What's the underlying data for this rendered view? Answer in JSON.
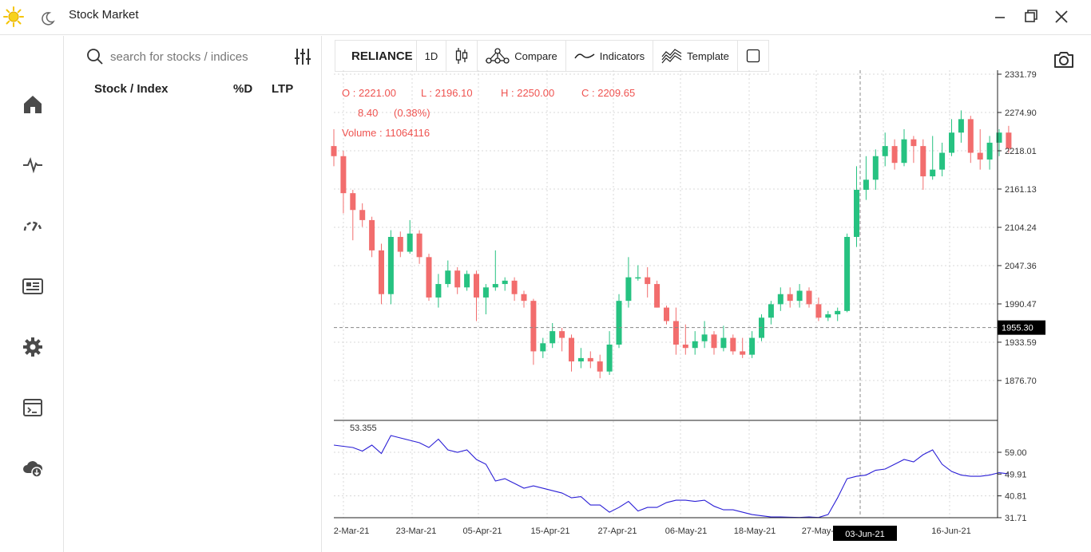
{
  "app": {
    "title": "Stock Market"
  },
  "search": {
    "placeholder": "search for stocks / indices"
  },
  "list": {
    "col_name": "Stock / Index",
    "col_change": "%D",
    "col_ltp": "LTP"
  },
  "toolbar": {
    "symbol": "RELIANCE",
    "interval": "1D",
    "compare": "Compare",
    "indicators": "Indicators",
    "template": "Template"
  },
  "ohlc": {
    "open": "O : 2221.00",
    "low": "L : 2196.10",
    "high": "H : 2250.00",
    "close": "C : 2209.65",
    "change": "8.40",
    "change_pct": "(0.38%)",
    "volume": "Volume :  11064116"
  },
  "crosshair": {
    "price": "1955.30",
    "date": "03-Jun-21"
  },
  "colors": {
    "up": "#26c281",
    "down": "#f26d6d",
    "indicator": "#2b1fd6",
    "text_accent": "#ef5350"
  },
  "chart_data": {
    "type": "candlestick",
    "price_axis": {
      "ticks": [
        "2331.79",
        "2274.90",
        "2218.01",
        "2161.13",
        "2104.24",
        "2047.36",
        "1990.47",
        "1933.59",
        "1876.70"
      ],
      "range": [
        1790,
        2331.79
      ]
    },
    "x_axis": {
      "ticks": [
        "2-Mar-21",
        "23-Mar-21",
        "05-Apr-21",
        "15-Apr-21",
        "27-Apr-21",
        "06-May-21",
        "18-May-21",
        "27-May-21",
        "",
        "16-Jun-21"
      ]
    },
    "candles": [
      [
        2225,
        2250,
        2195,
        2210
      ],
      [
        2210,
        2218,
        2125,
        2155
      ],
      [
        2155,
        2160,
        2085,
        2130
      ],
      [
        2130,
        2140,
        2105,
        2115
      ],
      [
        2115,
        2120,
        2060,
        2070
      ],
      [
        2070,
        2080,
        1990,
        2005
      ],
      [
        2005,
        2100,
        1990,
        2090
      ],
      [
        2090,
        2098,
        2060,
        2068
      ],
      [
        2068,
        2115,
        2065,
        2095
      ],
      [
        2095,
        2100,
        2050,
        2060
      ],
      [
        2060,
        2065,
        1995,
        2000
      ],
      [
        2000,
        2035,
        1985,
        2020
      ],
      [
        2020,
        2055,
        2015,
        2040
      ],
      [
        2040,
        2045,
        2005,
        2015
      ],
      [
        2015,
        2040,
        2010,
        2035
      ],
      [
        2035,
        2040,
        1965,
        2000
      ],
      [
        2000,
        2020,
        1975,
        2015
      ],
      [
        2015,
        2070,
        2010,
        2020
      ],
      [
        2020,
        2030,
        2010,
        2025
      ],
      [
        2025,
        2030,
        1995,
        2005
      ],
      [
        2005,
        2010,
        1985,
        1995
      ],
      [
        1995,
        1998,
        1900,
        1920
      ],
      [
        1920,
        1940,
        1910,
        1932
      ],
      [
        1932,
        1962,
        1925,
        1950
      ],
      [
        1950,
        1955,
        1920,
        1940
      ],
      [
        1940,
        1945,
        1890,
        1905
      ],
      [
        1905,
        1925,
        1895,
        1910
      ],
      [
        1910,
        1920,
        1895,
        1905
      ],
      [
        1905,
        1915,
        1880,
        1890
      ],
      [
        1890,
        1950,
        1885,
        1930
      ],
      [
        1930,
        2005,
        1925,
        1995
      ],
      [
        1995,
        2060,
        1985,
        2030
      ],
      [
        2030,
        2048,
        2025,
        2030
      ],
      [
        2030,
        2045,
        2000,
        2020
      ],
      [
        2020,
        2025,
        1985,
        1985
      ],
      [
        1985,
        1988,
        1960,
        1965
      ],
      [
        1965,
        1985,
        1915,
        1930
      ],
      [
        1930,
        1960,
        1915,
        1925
      ],
      [
        1925,
        1950,
        1915,
        1935
      ],
      [
        1935,
        1965,
        1925,
        1945
      ],
      [
        1945,
        1950,
        1915,
        1925
      ],
      [
        1925,
        1958,
        1920,
        1940
      ],
      [
        1940,
        1945,
        1915,
        1920
      ],
      [
        1920,
        1940,
        1910,
        1915
      ],
      [
        1915,
        1950,
        1910,
        1940
      ],
      [
        1940,
        1975,
        1935,
        1970
      ],
      [
        1970,
        1995,
        1960,
        1990
      ],
      [
        1990,
        2015,
        1980,
        2005
      ],
      [
        2005,
        2015,
        1985,
        1995
      ],
      [
        1995,
        2020,
        1985,
        2010
      ],
      [
        2010,
        2015,
        1985,
        1990
      ],
      [
        1990,
        2000,
        1965,
        1970
      ],
      [
        1970,
        1980,
        1965,
        1975
      ],
      [
        1975,
        1985,
        1965,
        1980
      ],
      [
        1980,
        2095,
        1978,
        2090
      ],
      [
        2090,
        2195,
        2075,
        2160
      ],
      [
        2160,
        2210,
        2145,
        2175
      ],
      [
        2175,
        2220,
        2160,
        2210
      ],
      [
        2210,
        2245,
        2195,
        2225
      ],
      [
        2225,
        2235,
        2190,
        2200
      ],
      [
        2200,
        2250,
        2195,
        2235
      ],
      [
        2235,
        2240,
        2200,
        2225
      ],
      [
        2225,
        2235,
        2160,
        2180
      ],
      [
        2180,
        2240,
        2175,
        2190
      ],
      [
        2190,
        2230,
        2180,
        2215
      ],
      [
        2215,
        2265,
        2210,
        2245
      ],
      [
        2245,
        2278,
        2230,
        2265
      ],
      [
        2265,
        2270,
        2200,
        2215
      ],
      [
        2215,
        2250,
        2190,
        2205
      ],
      [
        2205,
        2240,
        2190,
        2230
      ],
      [
        2230,
        2250,
        2210,
        2245
      ],
      [
        2245,
        2255,
        2215,
        2221
      ]
    ],
    "indicator": {
      "label": "53.355",
      "ticks": [
        "59.00",
        "49.91",
        "40.81",
        "31.71"
      ],
      "range": [
        31.71,
        68.09
      ],
      "values": [
        62,
        61.5,
        61,
        59.5,
        62,
        58.5,
        66,
        65,
        64,
        63,
        61,
        64.5,
        60,
        59,
        60,
        56,
        54,
        47,
        48,
        46,
        44,
        45,
        44,
        43,
        42,
        40,
        40.5,
        37,
        37,
        34,
        36,
        38.5,
        34.5,
        36,
        36,
        38,
        39,
        39,
        38.5,
        39,
        36.5,
        35,
        35,
        34,
        33,
        32.5,
        32,
        32,
        31.9,
        31.8,
        32,
        31.8,
        33,
        40,
        48,
        49,
        49.5,
        51.5,
        52,
        54,
        56,
        55,
        58,
        60,
        54,
        51,
        49.5,
        49,
        49,
        49.5,
        50.5,
        50
      ]
    }
  }
}
